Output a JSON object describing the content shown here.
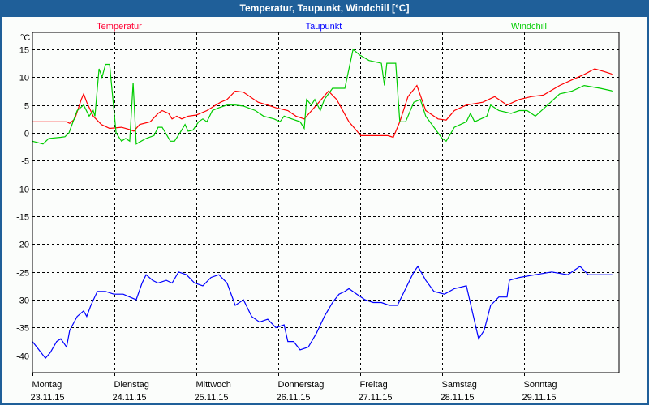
{
  "window": {
    "title": "Temperatur, Taupunkt, Windchill [°C]"
  },
  "chart_data": {
    "type": "line",
    "title": "Temperatur, Taupunkt, Windchill [°C]",
    "ylabel": "°C",
    "xlabel": "",
    "x_unit": "hours since Montag 23.11.15 00:00",
    "xlim": [
      0,
      171.8
    ],
    "ylim": [
      -43.2,
      18
    ],
    "yticks": [
      15,
      10,
      5,
      0,
      -5,
      -10,
      -15,
      -20,
      -25,
      -30,
      -35,
      -40
    ],
    "ytick_labels": [
      "15",
      "10",
      "5",
      "0",
      "-5",
      "-10",
      "-15",
      "-20",
      "-25",
      "-30",
      "-35",
      "-40"
    ],
    "xticks": [
      {
        "day": "Montag",
        "date": "23.11.15"
      },
      {
        "day": "Dienstag",
        "date": "24.11.15"
      },
      {
        "day": "Mittwoch",
        "date": "25.11.15"
      },
      {
        "day": "Donnerstag",
        "date": "26.11.15"
      },
      {
        "day": "Freitag",
        "date": "27.11.15"
      },
      {
        "day": "Samstag",
        "date": "28.11.15"
      },
      {
        "day": "Sonntag",
        "date": "29.11.15"
      }
    ],
    "grid": true,
    "legend_placement": "top",
    "series": [
      {
        "name": "Temperatur",
        "color": "#ff0000",
        "points": [
          [
            0,
            2
          ],
          [
            7.1,
            2
          ],
          [
            10,
            2
          ],
          [
            10.9,
            1.7
          ],
          [
            12.4,
            2.5
          ],
          [
            14.3,
            6
          ],
          [
            15,
            7
          ],
          [
            15.9,
            5.5
          ],
          [
            17.8,
            3
          ],
          [
            20.2,
            1.5
          ],
          [
            22.6,
            0.8
          ],
          [
            26.1,
            1
          ],
          [
            28.5,
            0.6
          ],
          [
            29.7,
            0.3
          ],
          [
            31.4,
            1.5
          ],
          [
            34.5,
            2
          ],
          [
            36.8,
            3.5
          ],
          [
            38,
            4
          ],
          [
            39.9,
            3.5
          ],
          [
            40.9,
            2.5
          ],
          [
            42.3,
            3
          ],
          [
            43.7,
            2.5
          ],
          [
            45.6,
            3
          ],
          [
            48,
            3.2
          ],
          [
            51.1,
            4
          ],
          [
            55.1,
            5.5
          ],
          [
            57,
            6
          ],
          [
            59.4,
            7.5
          ],
          [
            61.8,
            7.3
          ],
          [
            66.1,
            5.5
          ],
          [
            68.9,
            5
          ],
          [
            71.3,
            4.5
          ],
          [
            74.8,
            4
          ],
          [
            77.2,
            3
          ],
          [
            79.6,
            2.5
          ],
          [
            83.2,
            5
          ],
          [
            86.7,
            7.5
          ],
          [
            89.1,
            6
          ],
          [
            92.7,
            2
          ],
          [
            96.2,
            -0.5
          ],
          [
            101,
            -0.5
          ],
          [
            104.1,
            -0.5
          ],
          [
            105.7,
            -0.8
          ],
          [
            107.6,
            2
          ],
          [
            110,
            6.5
          ],
          [
            112.6,
            8.5
          ],
          [
            115.2,
            4
          ],
          [
            118.8,
            2.5
          ],
          [
            121.2,
            2.3
          ],
          [
            123.6,
            4
          ],
          [
            127.1,
            5
          ],
          [
            131.9,
            5.5
          ],
          [
            135.4,
            6.5
          ],
          [
            139,
            5
          ],
          [
            142.6,
            6
          ],
          [
            146.1,
            6.5
          ],
          [
            149.7,
            6.8
          ],
          [
            154.4,
            8.5
          ],
          [
            158,
            9.5
          ],
          [
            161.6,
            10.5
          ],
          [
            164.7,
            11.5
          ],
          [
            167.5,
            11
          ],
          [
            170.1,
            10.5
          ]
        ]
      },
      {
        "name": "Taupunkt",
        "color": "#0000ff",
        "points": [
          [
            0,
            -37.5
          ],
          [
            1.9,
            -39
          ],
          [
            3.8,
            -40.5
          ],
          [
            5.2,
            -39.5
          ],
          [
            7.1,
            -37.5
          ],
          [
            8.3,
            -37
          ],
          [
            10,
            -38.5
          ],
          [
            10.9,
            -35.5
          ],
          [
            13.1,
            -33
          ],
          [
            15,
            -32
          ],
          [
            15.9,
            -33
          ],
          [
            17.1,
            -31
          ],
          [
            19,
            -28.5
          ],
          [
            21.4,
            -28.5
          ],
          [
            23.8,
            -29
          ],
          [
            26.6,
            -29
          ],
          [
            28.5,
            -29.5
          ],
          [
            30.4,
            -30
          ],
          [
            32.1,
            -27
          ],
          [
            33.3,
            -25.5
          ],
          [
            35.2,
            -26.5
          ],
          [
            36.8,
            -27
          ],
          [
            39.2,
            -26.5
          ],
          [
            40.9,
            -27
          ],
          [
            42.8,
            -25
          ],
          [
            45.1,
            -25.5
          ],
          [
            47.5,
            -27
          ],
          [
            49.9,
            -27.5
          ],
          [
            52.3,
            -26
          ],
          [
            54.6,
            -25.5
          ],
          [
            57,
            -27
          ],
          [
            59.4,
            -31
          ],
          [
            61.8,
            -30
          ],
          [
            64.2,
            -33
          ],
          [
            66.5,
            -34
          ],
          [
            68.9,
            -33.5
          ],
          [
            71.3,
            -35
          ],
          [
            73.7,
            -34.5
          ],
          [
            74.8,
            -37.5
          ],
          [
            76.5,
            -37.5
          ],
          [
            78.4,
            -39
          ],
          [
            80.8,
            -38.5
          ],
          [
            83.2,
            -36
          ],
          [
            85.5,
            -33
          ],
          [
            87.9,
            -30.5
          ],
          [
            89.8,
            -29
          ],
          [
            91.5,
            -28.5
          ],
          [
            92.7,
            -28
          ],
          [
            95,
            -29
          ],
          [
            97.4,
            -30
          ],
          [
            99.8,
            -30.5
          ],
          [
            102.2,
            -30.5
          ],
          [
            104.5,
            -31
          ],
          [
            106.9,
            -31
          ],
          [
            109.3,
            -28
          ],
          [
            111.7,
            -25
          ],
          [
            112.9,
            -24
          ],
          [
            115.2,
            -26.5
          ],
          [
            117.6,
            -28.5
          ],
          [
            120.7,
            -29
          ],
          [
            123.6,
            -28
          ],
          [
            127.1,
            -27.5
          ],
          [
            128.8,
            -32
          ],
          [
            130.7,
            -37
          ],
          [
            132.3,
            -35.5
          ],
          [
            134.2,
            -31
          ],
          [
            136.6,
            -29.5
          ],
          [
            139,
            -29.5
          ],
          [
            139.7,
            -26.5
          ],
          [
            142.6,
            -26
          ],
          [
            147.3,
            -25.5
          ],
          [
            152.1,
            -25
          ],
          [
            156.8,
            -25.5
          ],
          [
            160.4,
            -24
          ],
          [
            162.8,
            -25.5
          ],
          [
            166.3,
            -25.5
          ],
          [
            170.1,
            -25.5
          ]
        ]
      },
      {
        "name": "Windchill",
        "color": "#00cc00",
        "points": [
          [
            0,
            -1.5
          ],
          [
            3.1,
            -2
          ],
          [
            4.8,
            -1
          ],
          [
            8.3,
            -0.8
          ],
          [
            9.5,
            -0.7
          ],
          [
            10.7,
            0
          ],
          [
            13.1,
            4
          ],
          [
            15,
            5
          ],
          [
            16.6,
            3
          ],
          [
            17.8,
            4
          ],
          [
            18.3,
            3
          ],
          [
            19.5,
            11.5
          ],
          [
            20.4,
            10
          ],
          [
            21.4,
            12.3
          ],
          [
            22.6,
            12.3
          ],
          [
            24.5,
            0
          ],
          [
            26.1,
            -1.5
          ],
          [
            27.3,
            -1
          ],
          [
            28.5,
            -1.5
          ],
          [
            29.5,
            9
          ],
          [
            30.4,
            -2
          ],
          [
            33.3,
            -1
          ],
          [
            35.6,
            -0.5
          ],
          [
            36.8,
            1
          ],
          [
            38,
            1
          ],
          [
            40.4,
            -1.5
          ],
          [
            41.6,
            -1.5
          ],
          [
            43.2,
            0
          ],
          [
            44.7,
            1.5
          ],
          [
            45.6,
            0.3
          ],
          [
            47,
            0.5
          ],
          [
            48.7,
            2
          ],
          [
            49.9,
            2.5
          ],
          [
            51.1,
            2
          ],
          [
            52.7,
            4
          ],
          [
            54.6,
            4.5
          ],
          [
            57,
            5
          ],
          [
            59.4,
            5
          ],
          [
            61.8,
            4.8
          ],
          [
            65.3,
            4
          ],
          [
            67.7,
            3
          ],
          [
            70.8,
            2.5
          ],
          [
            72.5,
            2
          ],
          [
            73.7,
            3
          ],
          [
            76,
            2.5
          ],
          [
            78.4,
            2
          ],
          [
            79.6,
            0.8
          ],
          [
            80.3,
            6
          ],
          [
            81.7,
            5
          ],
          [
            82.7,
            6
          ],
          [
            84.3,
            4
          ],
          [
            85.5,
            6
          ],
          [
            87.9,
            8
          ],
          [
            90.3,
            8
          ],
          [
            91.5,
            8
          ],
          [
            93.9,
            15
          ],
          [
            95.8,
            14
          ],
          [
            98.6,
            13
          ],
          [
            102.2,
            12.5
          ],
          [
            103.1,
            8.5
          ],
          [
            103.8,
            12.5
          ],
          [
            106.4,
            12.5
          ],
          [
            107.6,
            2
          ],
          [
            109.3,
            2
          ],
          [
            111.7,
            5.5
          ],
          [
            113.6,
            6
          ],
          [
            115.2,
            3
          ],
          [
            117.6,
            1
          ],
          [
            120,
            -1
          ],
          [
            121.2,
            -1.5
          ],
          [
            123.6,
            1
          ],
          [
            127.1,
            2
          ],
          [
            128.3,
            3.5
          ],
          [
            129.5,
            2
          ],
          [
            133.1,
            3
          ],
          [
            134.2,
            5
          ],
          [
            136.6,
            4
          ],
          [
            140.2,
            3.5
          ],
          [
            142.6,
            4
          ],
          [
            144.9,
            4
          ],
          [
            147.3,
            3
          ],
          [
            150.9,
            5
          ],
          [
            154.4,
            7
          ],
          [
            158,
            7.5
          ],
          [
            161.6,
            8.5
          ],
          [
            166.3,
            8
          ],
          [
            170.1,
            7.5
          ]
        ]
      }
    ]
  }
}
